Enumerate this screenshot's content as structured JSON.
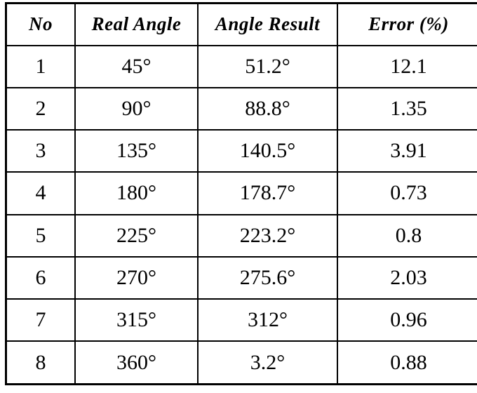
{
  "page": {
    "background_color": "#ffffff",
    "border_color": "#000000",
    "text_color": "#000000"
  },
  "table": {
    "columns": [
      "No",
      "Real Angle",
      "Angle Result",
      "Error (%)"
    ],
    "rows": [
      [
        "1",
        "45°",
        "51.2°",
        "12.1"
      ],
      [
        "2",
        "90°",
        "88.8°",
        "1.35"
      ],
      [
        "3",
        "135°",
        "140.5°",
        "3.91"
      ],
      [
        "4",
        "180°",
        "178.7°",
        "0.73"
      ],
      [
        "5",
        "225°",
        "223.2°",
        "0.8"
      ],
      [
        "6",
        "270°",
        "275.6°",
        "2.03"
      ],
      [
        "7",
        "315°",
        "312°",
        "0.96"
      ],
      [
        "8",
        "360°",
        "3.2°",
        "0.88"
      ]
    ]
  }
}
